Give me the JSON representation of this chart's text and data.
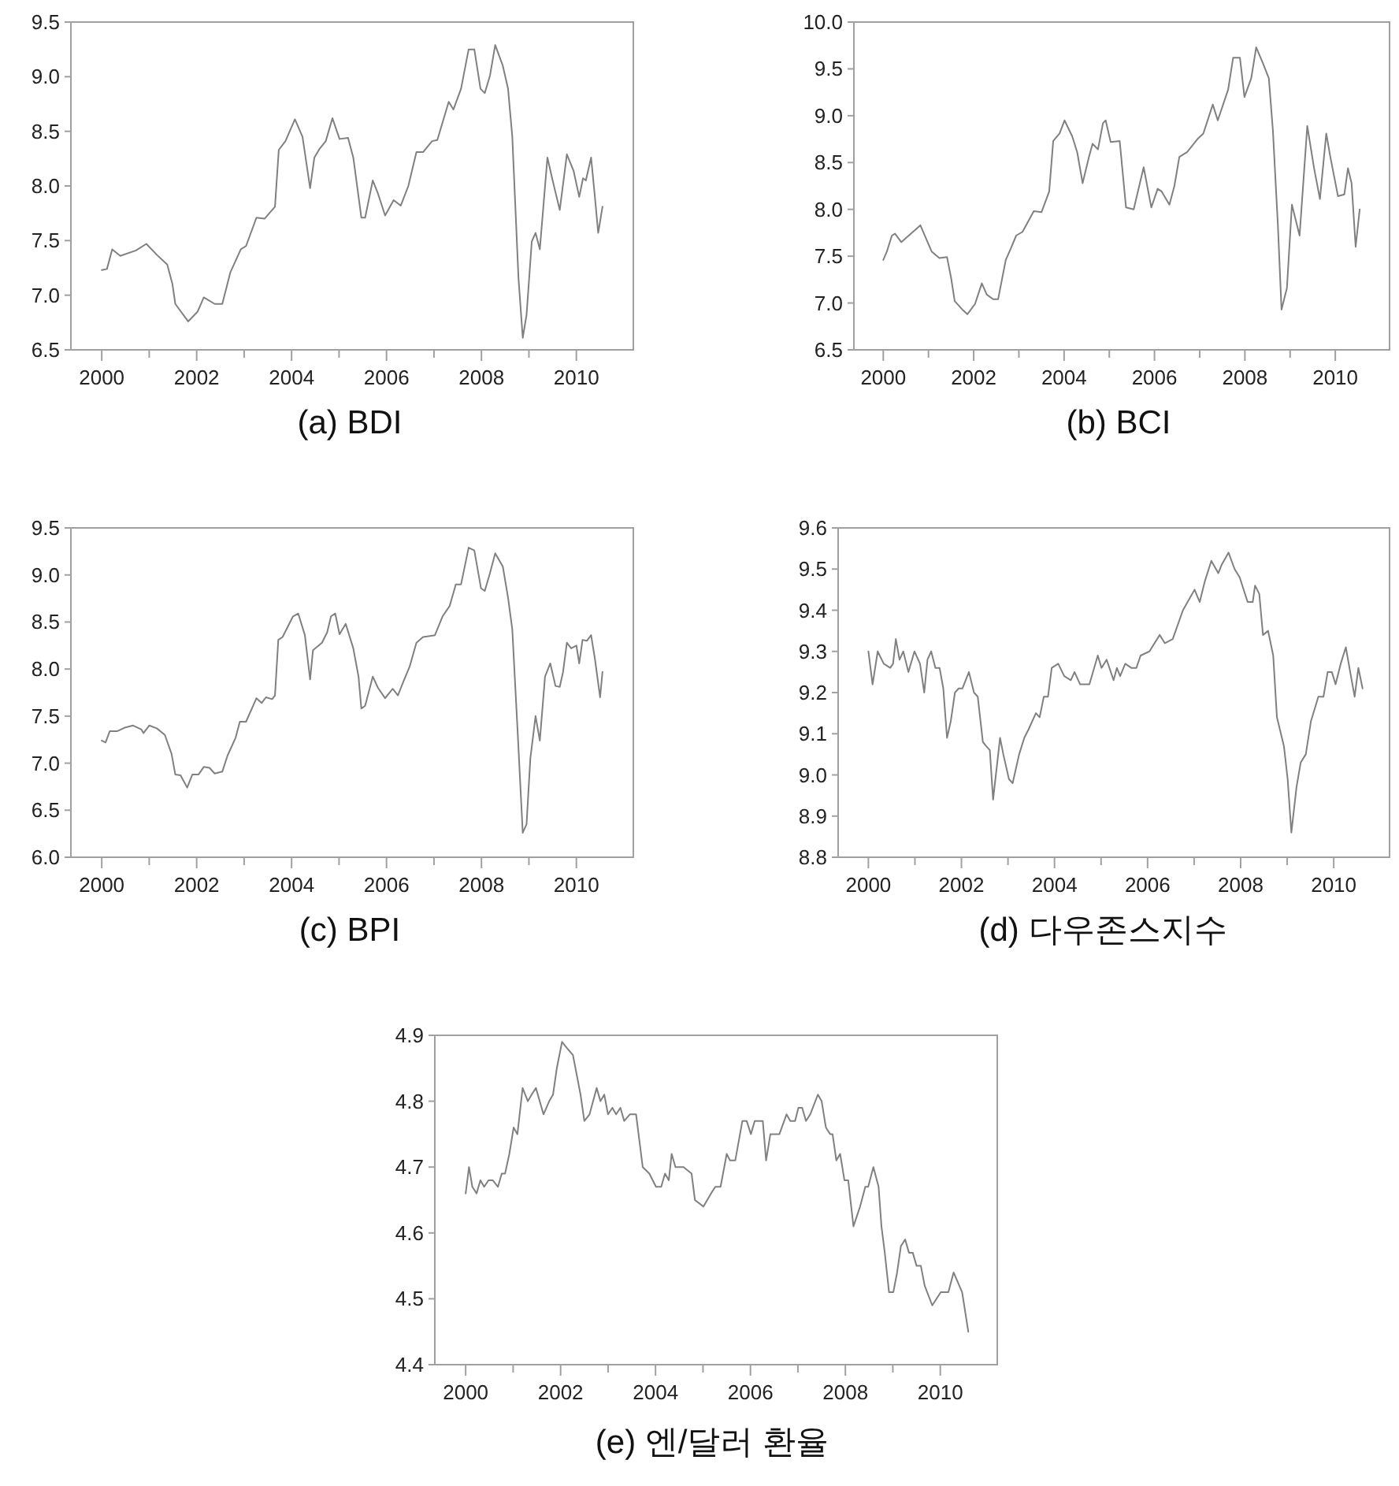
{
  "chart_data": [
    {
      "type": "line",
      "title": "(a) BDI",
      "color": "#808080",
      "grid": false,
      "xlim": [
        1999.35,
        2011.2
      ],
      "ylim": [
        6.5,
        9.5
      ],
      "xticks": [
        2000,
        {
          "value": 2001,
          "label": null
        },
        2002,
        {
          "value": 2003,
          "label": null
        },
        2004,
        {
          "value": 2005,
          "label": null
        },
        2006,
        {
          "value": 2007,
          "label": null
        },
        2008,
        {
          "value": 2009,
          "label": null
        },
        2010
      ],
      "yticks": [
        {
          "value": 6.5,
          "label": "6.5"
        },
        {
          "value": 7,
          "label": "7.0"
        },
        {
          "value": 7.5,
          "label": "7.5"
        },
        {
          "value": 8,
          "label": "8.0"
        },
        {
          "value": 8.5,
          "label": "8.5"
        },
        {
          "value": 9,
          "label": "9.0"
        },
        {
          "value": 9.5,
          "label": "9.5"
        }
      ],
      "x": [
        2000.0,
        2000.11,
        2000.22,
        2000.39,
        2000.72,
        2000.94,
        2001.16,
        2001.38,
        2001.49,
        2001.55,
        2001.82,
        2002.02,
        2002.15,
        2002.38,
        2002.54,
        2002.71,
        2002.93,
        2003.04,
        2003.26,
        2003.43,
        2003.65,
        2003.73,
        2003.87,
        2004.07,
        2004.23,
        2004.39,
        2004.48,
        2004.59,
        2004.72,
        2004.86,
        2005.01,
        2005.19,
        2005.3,
        2005.47,
        2005.55,
        2005.71,
        2005.82,
        2005.97,
        2006.15,
        2006.3,
        2006.46,
        2006.63,
        2006.77,
        2006.96,
        2007.07,
        2007.31,
        2007.41,
        2007.57,
        2007.73,
        2007.85,
        2007.98,
        2008.07,
        2008.18,
        2008.29,
        2008.45,
        2008.56,
        2008.65,
        2008.78,
        2008.87,
        2008.95,
        2009.06,
        2009.14,
        2009.23,
        2009.39,
        2009.5,
        2009.65,
        2009.8,
        2009.94,
        2010.06,
        2010.14,
        2010.2,
        2010.31,
        2010.39,
        2010.46,
        2010.55
      ],
      "values": [
        7.23,
        7.24,
        7.42,
        7.36,
        7.41,
        7.47,
        7.37,
        7.28,
        7.1,
        6.92,
        6.76,
        6.85,
        6.98,
        6.92,
        6.92,
        7.21,
        7.42,
        7.45,
        7.71,
        7.7,
        7.81,
        8.33,
        8.41,
        8.61,
        8.45,
        7.98,
        8.26,
        8.34,
        8.41,
        8.62,
        8.43,
        8.44,
        8.26,
        7.71,
        7.71,
        8.05,
        7.93,
        7.73,
        7.87,
        7.82,
        8.0,
        8.31,
        8.31,
        8.41,
        8.42,
        8.77,
        8.7,
        8.89,
        9.25,
        9.25,
        8.89,
        8.85,
        9.01,
        9.29,
        9.1,
        8.89,
        8.45,
        7.16,
        6.61,
        6.82,
        7.49,
        7.57,
        7.42,
        8.26,
        8.05,
        7.78,
        8.29,
        8.14,
        7.9,
        8.07,
        8.05,
        8.26,
        7.9,
        7.57,
        7.81
      ]
    },
    {
      "type": "line",
      "title": "(b) BCI",
      "color": "#808080",
      "grid": false,
      "xlim": [
        1999.35,
        2011.2
      ],
      "ylim": [
        6.5,
        10
      ],
      "xticks": [
        2000,
        {
          "value": 2001,
          "label": null
        },
        2002,
        {
          "value": 2003,
          "label": null
        },
        2004,
        {
          "value": 2005,
          "label": null
        },
        2006,
        {
          "value": 2007,
          "label": null
        },
        2008,
        {
          "value": 2009,
          "label": null
        },
        2010
      ],
      "yticks": [
        {
          "value": 6.5,
          "label": "6.5"
        },
        {
          "value": 7,
          "label": "7.0"
        },
        {
          "value": 7.5,
          "label": "7.5"
        },
        {
          "value": 8,
          "label": "8.0"
        },
        {
          "value": 8.5,
          "label": "8.5"
        },
        {
          "value": 9,
          "label": "9.0"
        },
        {
          "value": 9.5,
          "label": "9.5"
        },
        {
          "value": 10,
          "label": "10.0"
        }
      ],
      "x": [
        2000.0,
        2000.08,
        2000.19,
        2000.26,
        2000.4,
        2000.82,
        2001.07,
        2001.24,
        2001.41,
        2001.5,
        2001.58,
        2001.75,
        2001.86,
        2002.03,
        2002.18,
        2002.29,
        2002.43,
        2002.54,
        2002.71,
        2002.82,
        2002.94,
        2003.08,
        2003.33,
        2003.5,
        2003.67,
        2003.76,
        2003.9,
        2004.01,
        2004.18,
        2004.29,
        2004.41,
        2004.55,
        2004.63,
        2004.75,
        2004.86,
        2004.92,
        2005.03,
        2005.23,
        2005.37,
        2005.54,
        2005.76,
        2005.93,
        2006.07,
        2006.16,
        2006.33,
        2006.44,
        2006.55,
        2006.72,
        2006.95,
        2007.08,
        2007.29,
        2007.4,
        2007.63,
        2007.74,
        2007.89,
        2007.99,
        2008.14,
        2008.25,
        2008.4,
        2008.53,
        2008.62,
        2008.73,
        2008.81,
        2008.93,
        2009.04,
        2009.21,
        2009.38,
        2009.53,
        2009.66,
        2009.8,
        2009.89,
        2010.06,
        2010.2,
        2010.28,
        2010.36,
        2010.45,
        2010.54
      ],
      "values": [
        7.46,
        7.55,
        7.72,
        7.74,
        7.65,
        7.83,
        7.55,
        7.48,
        7.49,
        7.27,
        7.02,
        6.93,
        6.88,
        6.99,
        7.21,
        7.09,
        7.04,
        7.04,
        7.46,
        7.58,
        7.72,
        7.76,
        7.98,
        7.97,
        8.19,
        8.73,
        8.81,
        8.95,
        8.78,
        8.61,
        8.28,
        8.56,
        8.7,
        8.64,
        8.92,
        8.95,
        8.72,
        8.73,
        8.02,
        8.0,
        8.45,
        8.02,
        8.22,
        8.19,
        8.05,
        8.25,
        8.56,
        8.61,
        8.75,
        8.81,
        9.12,
        8.95,
        9.28,
        9.62,
        9.62,
        9.2,
        9.4,
        9.73,
        9.56,
        9.4,
        8.84,
        7.83,
        6.93,
        7.16,
        8.05,
        7.72,
        8.89,
        8.44,
        8.11,
        8.81,
        8.56,
        8.14,
        8.16,
        8.44,
        8.28,
        7.6,
        8.0
      ]
    },
    {
      "type": "line",
      "title": "(c) BPI",
      "color": "#808080",
      "grid": false,
      "xlim": [
        1999.35,
        2011.2
      ],
      "ylim": [
        6,
        9.5
      ],
      "xticks": [
        2000,
        {
          "value": 2001,
          "label": null
        },
        2002,
        {
          "value": 2003,
          "label": null
        },
        2004,
        {
          "value": 2005,
          "label": null
        },
        2006,
        {
          "value": 2007,
          "label": null
        },
        2008,
        {
          "value": 2009,
          "label": null
        },
        2010
      ],
      "yticks": [
        {
          "value": 6,
          "label": "6.0"
        },
        {
          "value": 6.5,
          "label": "6.5"
        },
        {
          "value": 7,
          "label": "7.0"
        },
        {
          "value": 7.5,
          "label": "7.5"
        },
        {
          "value": 8,
          "label": "8.0"
        },
        {
          "value": 8.5,
          "label": "8.5"
        },
        {
          "value": 9,
          "label": "9.0"
        },
        {
          "value": 9.5,
          "label": "9.5"
        }
      ],
      "x": [
        2000.0,
        2000.08,
        2000.17,
        2000.33,
        2000.5,
        2000.66,
        2000.83,
        2000.88,
        2001.0,
        2001.16,
        2001.33,
        2001.47,
        2001.55,
        2001.66,
        2001.8,
        2001.91,
        2002.04,
        2002.15,
        2002.27,
        2002.38,
        2002.54,
        2002.65,
        2002.82,
        2002.91,
        2003.04,
        2003.26,
        2003.37,
        2003.46,
        2003.59,
        2003.65,
        2003.72,
        2003.81,
        2004.03,
        2004.14,
        2004.28,
        2004.39,
        2004.45,
        2004.64,
        2004.75,
        2004.83,
        2004.92,
        2005.01,
        2005.14,
        2005.3,
        2005.41,
        2005.47,
        2005.55,
        2005.71,
        2005.82,
        2005.97,
        2006.13,
        2006.24,
        2006.35,
        2006.49,
        2006.63,
        2006.77,
        2007.02,
        2007.18,
        2007.33,
        2007.46,
        2007.57,
        2007.73,
        2007.85,
        2007.99,
        2008.07,
        2008.18,
        2008.29,
        2008.45,
        2008.56,
        2008.65,
        2008.76,
        2008.87,
        2008.95,
        2009.03,
        2009.14,
        2009.23,
        2009.34,
        2009.45,
        2009.56,
        2009.65,
        2009.72,
        2009.8,
        2009.89,
        2010.0,
        2010.06,
        2010.13,
        2010.22,
        2010.31,
        2010.39,
        2010.5,
        2010.55
      ],
      "values": [
        7.24,
        7.22,
        7.34,
        7.34,
        7.38,
        7.4,
        7.36,
        7.32,
        7.4,
        7.37,
        7.3,
        7.1,
        6.88,
        6.87,
        6.74,
        6.88,
        6.88,
        6.96,
        6.95,
        6.89,
        6.91,
        7.08,
        7.27,
        7.44,
        7.44,
        7.69,
        7.64,
        7.7,
        7.68,
        7.72,
        8.31,
        8.34,
        8.56,
        8.59,
        8.36,
        7.89,
        8.2,
        8.28,
        8.39,
        8.56,
        8.59,
        8.37,
        8.48,
        8.22,
        7.92,
        7.58,
        7.61,
        7.92,
        7.8,
        7.69,
        7.79,
        7.72,
        7.86,
        8.03,
        8.28,
        8.34,
        8.36,
        8.56,
        8.67,
        8.9,
        8.9,
        9.29,
        9.26,
        8.86,
        8.83,
        9.02,
        9.23,
        9.09,
        8.76,
        8.42,
        7.36,
        6.26,
        6.35,
        7.05,
        7.5,
        7.24,
        7.92,
        8.06,
        7.82,
        7.81,
        7.97,
        8.28,
        8.22,
        8.25,
        8.06,
        8.31,
        8.3,
        8.36,
        8.11,
        7.7,
        7.97
      ]
    },
    {
      "type": "line",
      "title": "(d) 다우존스지수",
      "color": "#808080",
      "grid": false,
      "xlim": [
        1999.35,
        2011.2
      ],
      "ylim": [
        8.8,
        9.6
      ],
      "xticks": [
        2000,
        {
          "value": 2001,
          "label": null
        },
        2002,
        {
          "value": 2003,
          "label": null
        },
        2004,
        {
          "value": 2005,
          "label": null
        },
        2006,
        {
          "value": 2007,
          "label": null
        },
        2008,
        {
          "value": 2009,
          "label": null
        },
        2010
      ],
      "yticks": [
        {
          "value": 8.8,
          "label": "8.8"
        },
        {
          "value": 8.9,
          "label": "8.9"
        },
        {
          "value": 9,
          "label": "9.0"
        },
        {
          "value": 9.1,
          "label": "9.1"
        },
        {
          "value": 9.2,
          "label": "9.2"
        },
        {
          "value": 9.3,
          "label": "9.3"
        },
        {
          "value": 9.4,
          "label": "9.4"
        },
        {
          "value": 9.5,
          "label": "9.5"
        },
        {
          "value": 9.6,
          "label": "9.6"
        }
      ],
      "x": [
        2000.0,
        2000.09,
        2000.2,
        2000.33,
        2000.47,
        2000.53,
        2000.59,
        2000.67,
        2000.75,
        2000.86,
        2000.99,
        2001.11,
        2001.2,
        2001.27,
        2001.35,
        2001.44,
        2001.53,
        2001.61,
        2001.69,
        2001.77,
        2001.86,
        2001.94,
        2002.02,
        2002.16,
        2002.27,
        2002.35,
        2002.46,
        2002.53,
        2002.61,
        2002.68,
        2002.83,
        2002.9,
        2003.02,
        2003.1,
        2003.24,
        2003.35,
        2003.44,
        2003.6,
        2003.68,
        2003.77,
        2003.86,
        2003.94,
        2004.08,
        2004.21,
        2004.35,
        2004.43,
        2004.55,
        2004.75,
        2004.93,
        2005.01,
        2005.12,
        2005.27,
        2005.34,
        2005.41,
        2005.52,
        2005.65,
        2005.76,
        2005.85,
        2006.04,
        2006.26,
        2006.37,
        2006.54,
        2006.76,
        2007.01,
        2007.12,
        2007.23,
        2007.37,
        2007.52,
        2007.59,
        2007.74,
        2007.87,
        2007.98,
        2008.15,
        2008.26,
        2008.31,
        2008.4,
        2008.48,
        2008.59,
        2008.7,
        2008.78,
        2008.93,
        2009.01,
        2009.09,
        2009.2,
        2009.29,
        2009.4,
        2009.51,
        2009.67,
        2009.78,
        2009.87,
        2009.96,
        2010.04,
        2010.15,
        2010.26,
        2010.37,
        2010.45,
        2010.53,
        2010.62
      ],
      "values": [
        9.3,
        9.22,
        9.3,
        9.27,
        9.26,
        9.27,
        9.33,
        9.28,
        9.3,
        9.25,
        9.3,
        9.27,
        9.2,
        9.28,
        9.3,
        9.26,
        9.26,
        9.21,
        9.09,
        9.13,
        9.2,
        9.21,
        9.21,
        9.25,
        9.2,
        9.19,
        9.08,
        9.07,
        9.06,
        8.94,
        9.09,
        9.05,
        8.99,
        8.98,
        9.05,
        9.09,
        9.11,
        9.15,
        9.14,
        9.19,
        9.19,
        9.26,
        9.27,
        9.24,
        9.23,
        9.25,
        9.22,
        9.22,
        9.29,
        9.26,
        9.28,
        9.23,
        9.26,
        9.24,
        9.27,
        9.26,
        9.26,
        9.29,
        9.3,
        9.34,
        9.32,
        9.33,
        9.4,
        9.45,
        9.42,
        9.47,
        9.52,
        9.49,
        9.51,
        9.54,
        9.5,
        9.48,
        9.42,
        9.42,
        9.46,
        9.44,
        9.34,
        9.35,
        9.29,
        9.14,
        9.07,
        8.99,
        8.86,
        8.97,
        9.03,
        9.05,
        9.13,
        9.19,
        9.19,
        9.25,
        9.25,
        9.22,
        9.27,
        9.31,
        9.24,
        9.19,
        9.26,
        9.21
      ]
    },
    {
      "type": "line",
      "title": "(e) 엔/달러 환율",
      "color": "#808080",
      "grid": false,
      "xlim": [
        1999.35,
        2011.2
      ],
      "ylim": [
        4.4,
        4.9
      ],
      "xticks": [
        2000,
        {
          "value": 2001,
          "label": null
        },
        2002,
        {
          "value": 2003,
          "label": null
        },
        2004,
        {
          "value": 2005,
          "label": null
        },
        2006,
        {
          "value": 2007,
          "label": null
        },
        2008,
        {
          "value": 2009,
          "label": null
        },
        2010
      ],
      "yticks": [
        {
          "value": 4.4,
          "label": "4.4"
        },
        {
          "value": 4.5,
          "label": "4.5"
        },
        {
          "value": 4.6,
          "label": "4.6"
        },
        {
          "value": 4.7,
          "label": "4.7"
        },
        {
          "value": 4.8,
          "label": "4.8"
        },
        {
          "value": 4.9,
          "label": "4.9"
        }
      ],
      "x": [
        2000.0,
        2000.07,
        2000.14,
        2000.23,
        2000.31,
        2000.39,
        2000.48,
        2000.57,
        2000.68,
        2000.76,
        2000.83,
        2000.92,
        2001.01,
        2001.09,
        2001.2,
        2001.31,
        2001.39,
        2001.48,
        2001.64,
        2001.76,
        2001.84,
        2001.92,
        2002.03,
        2002.14,
        2002.26,
        2002.42,
        2002.5,
        2002.61,
        2002.76,
        2002.84,
        2002.92,
        2003.0,
        2003.09,
        2003.17,
        2003.26,
        2003.34,
        2003.46,
        2003.59,
        2003.73,
        2003.87,
        2004.01,
        2004.12,
        2004.2,
        2004.28,
        2004.34,
        2004.42,
        2004.5,
        2004.59,
        2004.76,
        2004.83,
        2005.01,
        2005.17,
        2005.26,
        2005.37,
        2005.5,
        2005.57,
        2005.68,
        2005.83,
        2005.92,
        2006.01,
        2006.09,
        2006.26,
        2006.33,
        2006.42,
        2006.61,
        2006.76,
        2006.84,
        2006.94,
        2007.01,
        2007.09,
        2007.17,
        2007.26,
        2007.42,
        2007.5,
        2007.59,
        2007.68,
        2007.73,
        2007.81,
        2007.89,
        2007.98,
        2008.06,
        2008.17,
        2008.31,
        2008.42,
        2008.48,
        2008.59,
        2008.7,
        2008.76,
        2008.83,
        2008.92,
        2009.01,
        2009.09,
        2009.17,
        2009.26,
        2009.34,
        2009.42,
        2009.5,
        2009.59,
        2009.67,
        2009.83,
        2010.01,
        2010.09,
        2010.17,
        2010.28,
        2010.46,
        2010.59
      ],
      "values": [
        4.66,
        4.7,
        4.67,
        4.66,
        4.68,
        4.67,
        4.68,
        4.68,
        4.67,
        4.69,
        4.69,
        4.72,
        4.76,
        4.75,
        4.82,
        4.8,
        4.81,
        4.82,
        4.78,
        4.8,
        4.81,
        4.85,
        4.89,
        4.88,
        4.87,
        4.81,
        4.77,
        4.78,
        4.82,
        4.8,
        4.81,
        4.78,
        4.79,
        4.78,
        4.79,
        4.77,
        4.78,
        4.78,
        4.7,
        4.69,
        4.67,
        4.67,
        4.69,
        4.68,
        4.72,
        4.7,
        4.7,
        4.7,
        4.69,
        4.65,
        4.64,
        4.66,
        4.67,
        4.67,
        4.72,
        4.71,
        4.71,
        4.77,
        4.77,
        4.75,
        4.77,
        4.77,
        4.71,
        4.75,
        4.75,
        4.78,
        4.77,
        4.77,
        4.79,
        4.79,
        4.77,
        4.78,
        4.81,
        4.8,
        4.76,
        4.75,
        4.75,
        4.71,
        4.72,
        4.68,
        4.68,
        4.61,
        4.64,
        4.67,
        4.67,
        4.7,
        4.67,
        4.61,
        4.57,
        4.51,
        4.51,
        4.54,
        4.58,
        4.59,
        4.57,
        4.57,
        4.55,
        4.55,
        4.52,
        4.49,
        4.51,
        4.51,
        4.51,
        4.54,
        4.51,
        4.45
      ]
    }
  ]
}
